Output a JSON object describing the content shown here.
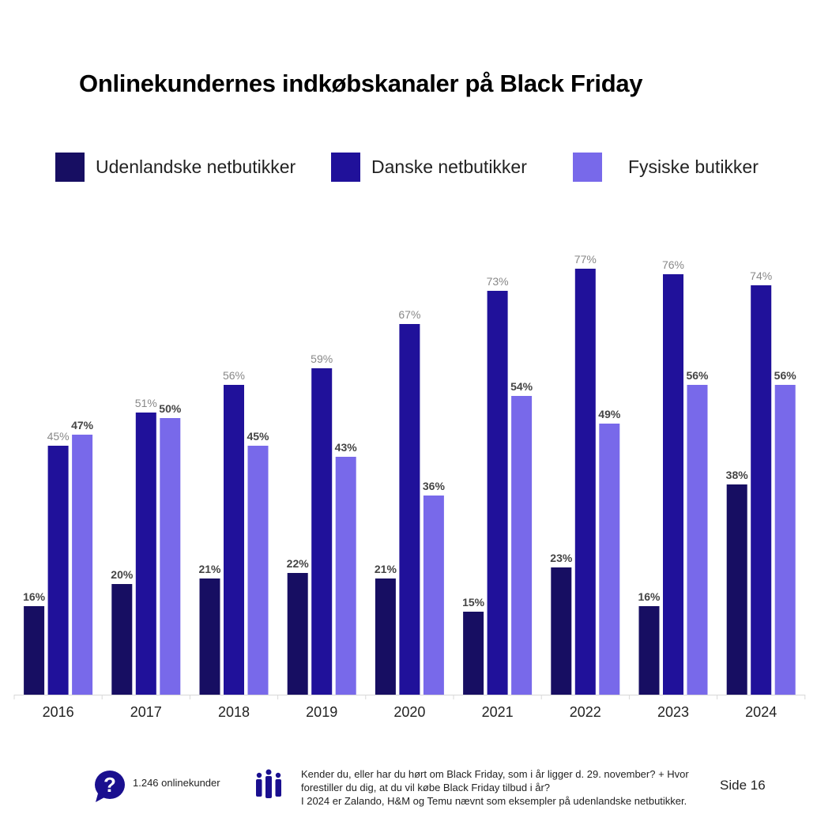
{
  "title": "Onlinekundernes indkøbskanaler på Black Friday",
  "chart_data": {
    "type": "bar",
    "title": "Onlinekundernes indkøbskanaler på Black Friday",
    "xlabel": "",
    "ylabel": "",
    "ylim": [
      0,
      80
    ],
    "grid": false,
    "legend_position": "top",
    "categories": [
      "2016",
      "2017",
      "2018",
      "2019",
      "2020",
      "2021",
      "2022",
      "2023",
      "2024"
    ],
    "series": [
      {
        "name": "Udenlandske netbutikker",
        "color": "#170e62",
        "values": [
          16,
          20,
          21,
          22,
          21,
          15,
          23,
          16,
          38
        ]
      },
      {
        "name": "Danske netbutikker",
        "color": "#20119a",
        "values": [
          45,
          51,
          56,
          59,
          67,
          73,
          77,
          76,
          74
        ]
      },
      {
        "name": "Fysiske butikker",
        "color": "#7869ea",
        "values": [
          47,
          50,
          45,
          43,
          36,
          54,
          49,
          56,
          56
        ]
      }
    ]
  },
  "footer": {
    "sample_icon": "speech-bubble-question-icon",
    "sample": "1.246 onlinekunder",
    "people_icon": "people-group-icon",
    "question_line1": "Kender du, eller har du hørt om Black Friday, som i år ligger d. 29. november? + Hvor",
    "question_line2": "forestiller du dig, at du vil købe Black Friday tilbud i år?",
    "question_line3": "I 2024 er Zalando, H&M og Temu nævnt som eksempler på udenlandske netbutikker.",
    "page": "Side 16"
  }
}
